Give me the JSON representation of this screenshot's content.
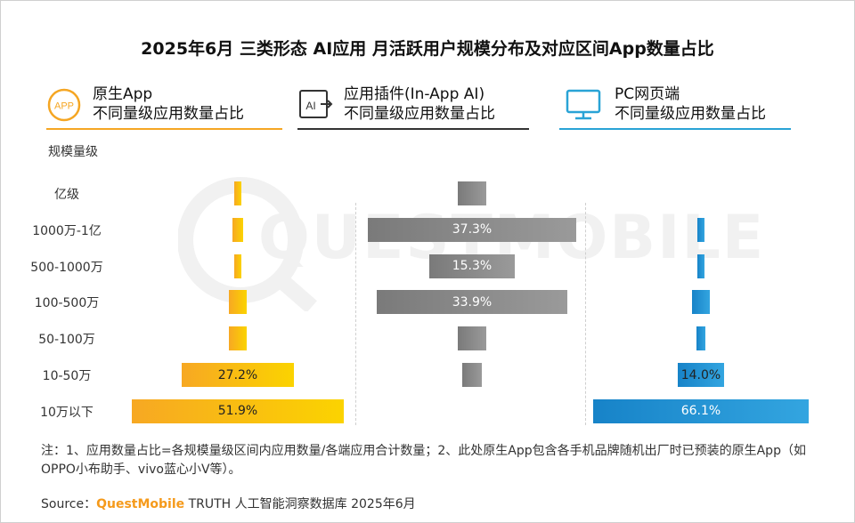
{
  "title": "2025年6月 三类形态 AI应用 月活跃用户规模分布及对应区间App数量占比",
  "panels": [
    {
      "line1": "原生App",
      "line2": "不同量级应用数量占比",
      "icon": "app-circle-icon",
      "icon_text": "APP",
      "color": "#f5a623"
    },
    {
      "line1": "应用插件(In-App AI)",
      "line2": "不同量级应用数量占比",
      "icon": "ai-plugin-icon",
      "icon_text": "AI",
      "color": "#333333"
    },
    {
      "line1": "PC网页端",
      "line2": "不同量级应用数量占比",
      "icon": "monitor-icon",
      "icon_text": "",
      "color": "#29a3d6"
    }
  ],
  "size_axis_title": "规模量级",
  "watermark": "QUESTMOBILE",
  "chart_data": {
    "type": "bar",
    "orientation": "horizontal-centered",
    "unit": "%",
    "categories": [
      "亿级",
      "1000万-1亿",
      "500-1000万",
      "100-500万",
      "50-100万",
      "10-50万",
      "10万以下"
    ],
    "series": [
      {
        "name": "原生App",
        "color": "#f7b21a",
        "values": [
          1.9,
          2.6,
          1.9,
          4.5,
          4.2,
          27.2,
          51.9
        ],
        "labels": [
          "",
          "",
          "",
          "",
          "",
          "27.2%",
          "51.9%"
        ]
      },
      {
        "name": "应用插件(In-App AI)",
        "color": "#8a8a8a",
        "values": [
          5.1,
          37.3,
          15.3,
          33.9,
          5.1,
          3.4,
          0
        ],
        "labels": [
          "",
          "37.3%",
          "15.3%",
          "33.9%",
          "",
          "",
          ""
        ]
      },
      {
        "name": "PC网页端",
        "color": "#1a8fd3",
        "values": [
          0,
          1.5,
          1.1,
          5.6,
          2.9,
          14.0,
          66.1
        ],
        "labels": [
          "",
          "",
          "",
          "",
          "",
          "14.0%",
          "66.1%"
        ]
      }
    ]
  },
  "footnote": "注：1、应用数量占比=各规模量级区间内应用数量/各端应用合计数量；2、此处原生App包含各手机品牌随机出厂时已预装的原生App（如OPPO小布助手、vivo蓝心小V等）。",
  "source": {
    "prefix": "Source：",
    "brand": "QuestMobile",
    "rest": " TRUTH 人工智能洞察数据库 2025年6月"
  }
}
